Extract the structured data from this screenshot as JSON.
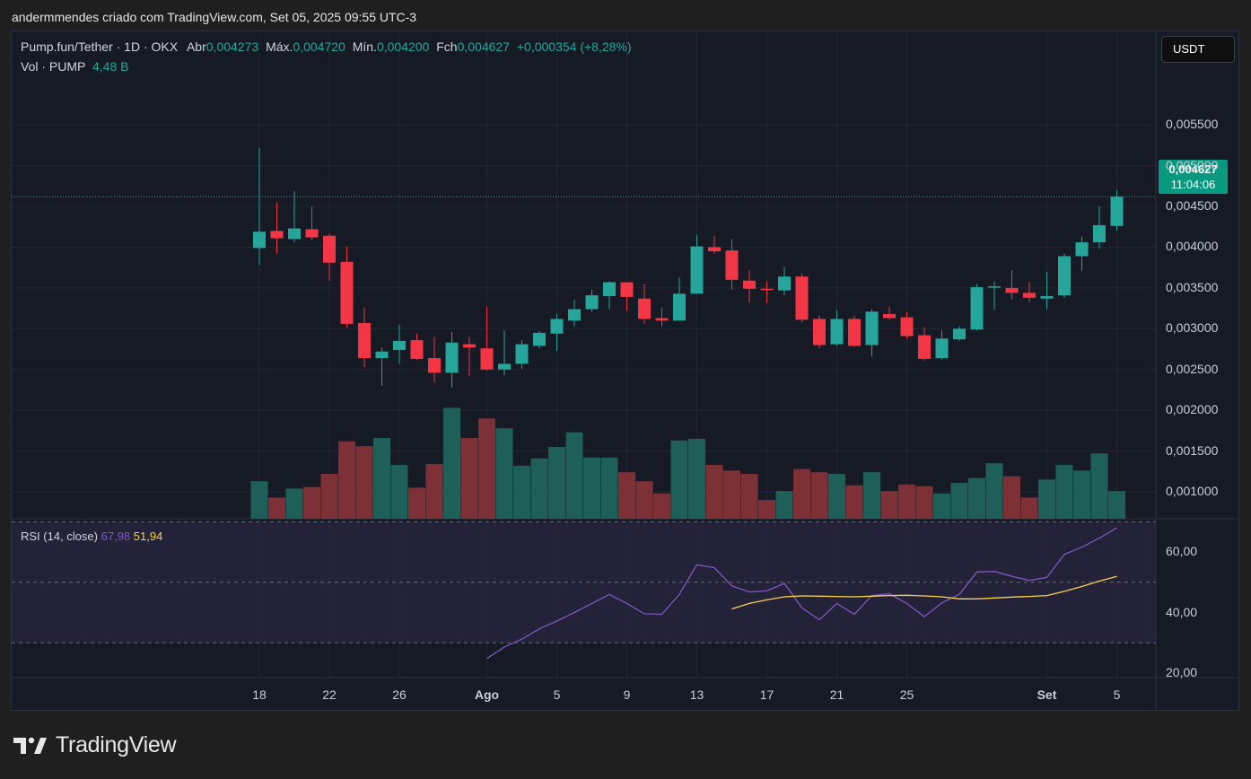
{
  "header": {
    "title": "andermmendes criado com TradingView.com, Set 05, 2025 09:55 UTC-3"
  },
  "legend": {
    "symbol": "Pump.fun/Tether · 1D · OKX",
    "open_label": "Abr",
    "open": "0,004273",
    "high_label": "Máx.",
    "high": "0,004720",
    "low_label": "Mín.",
    "low": "0,004200",
    "close_label": "Fch",
    "close": "0,004627",
    "change": "+0,000354 (+8,28%)",
    "vol_label": "Vol · PUMP",
    "vol": "4,48 B"
  },
  "rsi_legend": {
    "label": "RSI (14, close)",
    "rsi": "67,98",
    "ma": "51,94"
  },
  "currency_button": "USDT",
  "last_price": {
    "price": "0,004627",
    "countdown": "11:04:06"
  },
  "brand": {
    "name": "TradingView"
  },
  "colors": {
    "up": "#26a69a",
    "down": "#f23645",
    "vol_up": "#1f5f5a",
    "vol_down": "#7d3136",
    "rsi": "#7e57c2",
    "rsi_ma": "#f7d34a",
    "rsi_band": "#2a2540"
  },
  "chart_data": {
    "type": "candlestick",
    "price_axis": {
      "ticks": [
        "0,005500",
        "0,005000",
        "0,004500",
        "0,004000",
        "0,003500",
        "0,003000",
        "0,002500",
        "0,002000",
        "0,001500",
        "0,001000"
      ],
      "ylim": [
        0.00067,
        0.00592
      ]
    },
    "time_axis": {
      "labels": [
        "18",
        "22",
        "26",
        "Ago",
        "5",
        "9",
        "13",
        "17",
        "21",
        "25",
        "Set",
        "5"
      ],
      "label_index": [
        0,
        4,
        8,
        13,
        17,
        21,
        25,
        29,
        33,
        37,
        45,
        49
      ]
    },
    "candles": [
      {
        "o": 0.00399,
        "h": 0.00522,
        "l": 0.00378,
        "c": 0.00419
      },
      {
        "o": 0.0042,
        "h": 0.00455,
        "l": 0.00392,
        "c": 0.00411
      },
      {
        "o": 0.0041,
        "h": 0.00469,
        "l": 0.00406,
        "c": 0.00423
      },
      {
        "o": 0.00422,
        "h": 0.0045,
        "l": 0.00409,
        "c": 0.00412
      },
      {
        "o": 0.00414,
        "h": 0.00417,
        "l": 0.00359,
        "c": 0.00381
      },
      {
        "o": 0.00382,
        "h": 0.00401,
        "l": 0.00301,
        "c": 0.00306
      },
      {
        "o": 0.00307,
        "h": 0.00326,
        "l": 0.00253,
        "c": 0.00264
      },
      {
        "o": 0.00264,
        "h": 0.00277,
        "l": 0.0023,
        "c": 0.00272
      },
      {
        "o": 0.00274,
        "h": 0.00305,
        "l": 0.00257,
        "c": 0.00285
      },
      {
        "o": 0.00286,
        "h": 0.00294,
        "l": 0.00262,
        "c": 0.00263
      },
      {
        "o": 0.00264,
        "h": 0.0029,
        "l": 0.00234,
        "c": 0.00246
      },
      {
        "o": 0.00246,
        "h": 0.00296,
        "l": 0.00228,
        "c": 0.00283
      },
      {
        "o": 0.00281,
        "h": 0.0029,
        "l": 0.00242,
        "c": 0.00277
      },
      {
        "o": 0.00276,
        "h": 0.00327,
        "l": 0.00249,
        "c": 0.0025
      },
      {
        "o": 0.0025,
        "h": 0.00298,
        "l": 0.00243,
        "c": 0.00257
      },
      {
        "o": 0.00257,
        "h": 0.00286,
        "l": 0.00251,
        "c": 0.00281
      },
      {
        "o": 0.00279,
        "h": 0.00297,
        "l": 0.00276,
        "c": 0.00295
      },
      {
        "o": 0.00294,
        "h": 0.00318,
        "l": 0.00273,
        "c": 0.00312
      },
      {
        "o": 0.0031,
        "h": 0.00336,
        "l": 0.00303,
        "c": 0.00324
      },
      {
        "o": 0.00324,
        "h": 0.00348,
        "l": 0.00321,
        "c": 0.00341
      },
      {
        "o": 0.0034,
        "h": 0.00358,
        "l": 0.00324,
        "c": 0.00357
      },
      {
        "o": 0.00357,
        "h": 0.00357,
        "l": 0.00322,
        "c": 0.00339
      },
      {
        "o": 0.00337,
        "h": 0.00355,
        "l": 0.00306,
        "c": 0.00312
      },
      {
        "o": 0.00313,
        "h": 0.00326,
        "l": 0.00303,
        "c": 0.0031
      },
      {
        "o": 0.0031,
        "h": 0.00363,
        "l": 0.0031,
        "c": 0.00343
      },
      {
        "o": 0.00343,
        "h": 0.00415,
        "l": 0.00343,
        "c": 0.00401
      },
      {
        "o": 0.004,
        "h": 0.00414,
        "l": 0.00392,
        "c": 0.00395
      },
      {
        "o": 0.00396,
        "h": 0.0041,
        "l": 0.00348,
        "c": 0.0036
      },
      {
        "o": 0.00359,
        "h": 0.00372,
        "l": 0.00332,
        "c": 0.00349
      },
      {
        "o": 0.00349,
        "h": 0.00358,
        "l": 0.00332,
        "c": 0.00348
      },
      {
        "o": 0.00347,
        "h": 0.00376,
        "l": 0.00341,
        "c": 0.00364
      },
      {
        "o": 0.00364,
        "h": 0.00368,
        "l": 0.00308,
        "c": 0.00311
      },
      {
        "o": 0.00312,
        "h": 0.00316,
        "l": 0.00276,
        "c": 0.0028
      },
      {
        "o": 0.00281,
        "h": 0.00323,
        "l": 0.00279,
        "c": 0.00312
      },
      {
        "o": 0.00312,
        "h": 0.00316,
        "l": 0.00278,
        "c": 0.00279
      },
      {
        "o": 0.0028,
        "h": 0.00324,
        "l": 0.00266,
        "c": 0.00321
      },
      {
        "o": 0.00318,
        "h": 0.00327,
        "l": 0.00311,
        "c": 0.00313
      },
      {
        "o": 0.00314,
        "h": 0.00321,
        "l": 0.00288,
        "c": 0.00291
      },
      {
        "o": 0.00292,
        "h": 0.00302,
        "l": 0.00261,
        "c": 0.00263
      },
      {
        "o": 0.00264,
        "h": 0.00298,
        "l": 0.00262,
        "c": 0.00288
      },
      {
        "o": 0.00287,
        "h": 0.00303,
        "l": 0.00285,
        "c": 0.003
      },
      {
        "o": 0.00299,
        "h": 0.00355,
        "l": 0.00298,
        "c": 0.00351
      },
      {
        "o": 0.00351,
        "h": 0.00358,
        "l": 0.00323,
        "c": 0.00352
      },
      {
        "o": 0.0035,
        "h": 0.00372,
        "l": 0.00336,
        "c": 0.00344
      },
      {
        "o": 0.00344,
        "h": 0.00357,
        "l": 0.00333,
        "c": 0.00338
      },
      {
        "o": 0.00337,
        "h": 0.0037,
        "l": 0.00324,
        "c": 0.0034
      },
      {
        "o": 0.00341,
        "h": 0.00392,
        "l": 0.00338,
        "c": 0.00389
      },
      {
        "o": 0.00389,
        "h": 0.00413,
        "l": 0.00371,
        "c": 0.00406
      },
      {
        "o": 0.00406,
        "h": 0.0045,
        "l": 0.00398,
        "c": 0.00427
      },
      {
        "o": 0.00426,
        "h": 0.0047,
        "l": 0.0042,
        "c": 0.00462
      }
    ],
    "volume": [
      0.00113,
      0.00093,
      0.00104,
      0.00106,
      0.00122,
      0.00162,
      0.00156,
      0.00166,
      0.00133,
      0.00105,
      0.00134,
      0.00203,
      0.00166,
      0.0019,
      0.00178,
      0.00132,
      0.00141,
      0.00155,
      0.00173,
      0.00142,
      0.00142,
      0.00124,
      0.00113,
      0.00098,
      0.00163,
      0.00165,
      0.00133,
      0.00126,
      0.00122,
      0.0009,
      0.00101,
      0.00128,
      0.00124,
      0.00122,
      0.00108,
      0.00124,
      0.00101,
      0.00109,
      0.00107,
      0.00098,
      0.00111,
      0.00117,
      0.00135,
      0.00119,
      0.00093,
      0.00115,
      0.00133,
      0.00126,
      0.00147,
      0.00101
    ],
    "rsi_axis": {
      "ticks": [
        "60,00",
        "40,00",
        "20,00"
      ],
      "tick_values": [
        60,
        40,
        20
      ],
      "ylim": [
        18.5,
        71
      ],
      "levels": [
        70,
        50,
        30
      ]
    },
    "rsi": [
      null,
      null,
      null,
      null,
      null,
      null,
      null,
      null,
      null,
      null,
      null,
      null,
      null,
      24.8,
      28.6,
      31.2,
      34.6,
      37.2,
      40.0,
      43.0,
      46.0,
      43.0,
      39.6,
      39.4,
      46.0,
      55.8,
      54.8,
      48.8,
      46.8,
      47.2,
      49.6,
      41.6,
      37.6,
      43.0,
      39.4,
      45.6,
      46.2,
      43.0,
      38.6,
      43.2,
      46.0,
      53.4,
      53.6,
      52.0,
      50.6,
      51.6,
      59.2,
      61.6,
      64.6,
      67.98
    ],
    "rsi_ma": [
      null,
      null,
      null,
      null,
      null,
      null,
      null,
      null,
      null,
      null,
      null,
      null,
      null,
      null,
      null,
      null,
      null,
      null,
      null,
      null,
      null,
      null,
      null,
      null,
      null,
      null,
      null,
      41.2,
      43.0,
      44.2,
      45.2,
      45.5,
      45.4,
      45.3,
      45.2,
      45.4,
      45.6,
      45.7,
      45.5,
      45.2,
      44.5,
      44.5,
      44.8,
      45.1,
      45.3,
      45.6,
      47.0,
      48.6,
      50.4,
      51.94
    ]
  }
}
